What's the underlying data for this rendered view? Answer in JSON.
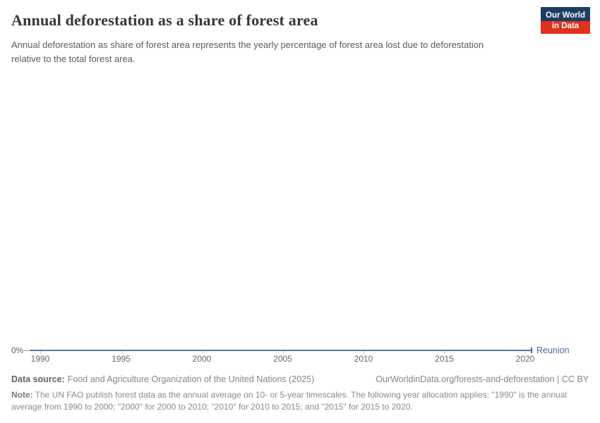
{
  "header": {
    "title": "Annual deforestation as a share of forest area",
    "subtitle": "Annual deforestation as share of forest area represents the yearly percentage of forest area lost due to deforestation relative to the total forest area.",
    "logo": {
      "line1": "Our World",
      "line2": "in Data",
      "bg_color": "#1d3d63",
      "accent_color": "#e0311c"
    }
  },
  "chart_data": {
    "type": "line",
    "title": "Annual deforestation as a share of forest area",
    "xlabel": "",
    "ylabel": "",
    "x_ticks": [
      1990,
      1995,
      2000,
      2005,
      2010,
      2015,
      2020
    ],
    "y_tick_labels": [
      "0%"
    ],
    "xlim": [
      1990,
      2022
    ],
    "grid": false,
    "legend_position": "end-of-line",
    "series": [
      {
        "name": "Reunion",
        "color": "#4C6A9C",
        "unit": "%",
        "x": [
          1990,
          2000,
          2010,
          2015,
          2020
        ],
        "values": [
          0,
          0,
          0,
          0,
          0
        ]
      }
    ]
  },
  "footer": {
    "data_source_label": "Data source:",
    "data_source": "Food and Agriculture Organization of the United Nations (2025)",
    "attribution": "OurWorldinData.org/forests-and-deforestation | CC BY",
    "note_label": "Note:",
    "note": "The UN FAO publish forest data as the annual average on 10- or 5-year timescales. The following year allocation applies: \"1990\" is the annual average from 1990 to 2000; \"2000\" for 2000 to 2010; \"2010\" for 2010 to 2015; and \"2015\" for 2015 to 2020."
  }
}
